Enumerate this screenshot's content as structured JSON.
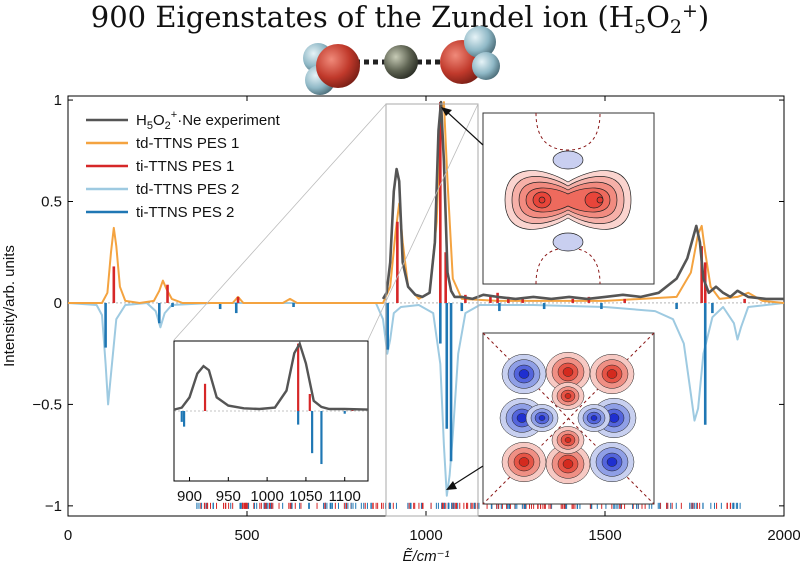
{
  "title": {
    "text": "900 Eigenstates of the Zundel ion (H",
    "sub5": "5",
    "mid": "O",
    "sub2": "2",
    "sup": "+",
    "close": ")"
  },
  "colors": {
    "experiment": "#555555",
    "td_pes1": "#f4a340",
    "ti_pes1": "#d62728",
    "td_pes2": "#9ecae1",
    "ti_pes2": "#1f77b4",
    "oxygen": "#c0392b",
    "hydrogen": "#9fc9d6",
    "neon": "#6b705c"
  },
  "legend": [
    {
      "key": "experiment",
      "label": "H5O2+·Ne experiment",
      "label_main": "H",
      "label_sub5": "5",
      "label_o": "O",
      "label_sub2": "2",
      "label_sup": "+",
      "label_rest": "·Ne experiment",
      "color_key": "experiment"
    },
    {
      "key": "td_pes1",
      "label": "td-TTNS PES 1",
      "color_key": "td_pes1"
    },
    {
      "key": "ti_pes1",
      "label": "ti-TTNS PES 1",
      "color_key": "ti_pes1"
    },
    {
      "key": "td_pes2",
      "label": "td-TTNS PES 2",
      "color_key": "td_pes2"
    },
    {
      "key": "ti_pes2",
      "label": "ti-TTNS PES 2",
      "color_key": "ti_pes2"
    }
  ],
  "chart_data": {
    "type": "line",
    "xlabel": "Ẽ/cm⁻¹",
    "ylabel": "Intensity/arb. units",
    "xlim": [
      0,
      2000
    ],
    "ylim": [
      -1.05,
      1.02
    ],
    "xticks": [
      0,
      500,
      1000,
      1500,
      2000
    ],
    "yticks": [
      -1,
      -0.5,
      0,
      0.5,
      1
    ],
    "ytick_labels": [
      "−1",
      "−0.5",
      "0",
      "0.5",
      "1"
    ],
    "series": [
      {
        "name": "H5O2+·Ne experiment",
        "kind": "line",
        "x": [
          880,
          890,
          900,
          910,
          918,
          925,
          935,
          950,
          970,
          990,
          1010,
          1025,
          1035,
          1042,
          1050,
          1060,
          1070,
          1080,
          1100,
          1130,
          1160,
          1200,
          1250,
          1300,
          1350,
          1400,
          1450,
          1500,
          1550,
          1600,
          1650,
          1700,
          1730,
          1755,
          1765,
          1775,
          1790,
          1810,
          1830,
          1850,
          1870,
          1900,
          1950,
          2000
        ],
        "y": [
          0.02,
          0.05,
          0.2,
          0.55,
          0.66,
          0.6,
          0.2,
          0.08,
          0.04,
          0.03,
          0.05,
          0.3,
          0.85,
          0.99,
          0.7,
          0.15,
          0.06,
          0.03,
          0.03,
          0.02,
          0.04,
          0.03,
          0.02,
          0.03,
          0.02,
          0.03,
          0.02,
          0.03,
          0.04,
          0.03,
          0.05,
          0.12,
          0.22,
          0.38,
          0.3,
          0.12,
          0.05,
          0.08,
          0.05,
          0.03,
          0.06,
          0.03,
          0.02,
          0.02
        ]
      },
      {
        "name": "td-TTNS PES 1",
        "kind": "line",
        "x": [
          0,
          95,
          110,
          120,
          128,
          135,
          145,
          160,
          200,
          240,
          255,
          265,
          275,
          290,
          320,
          460,
          475,
          490,
          600,
          620,
          640,
          880,
          900,
          915,
          925,
          935,
          950,
          980,
          1010,
          1030,
          1040,
          1050,
          1060,
          1075,
          1100,
          1200,
          1500,
          1700,
          1740,
          1760,
          1770,
          1780,
          1795,
          1820,
          1870,
          1900,
          1940,
          2000
        ],
        "y": [
          0,
          0,
          0.05,
          0.25,
          0.37,
          0.28,
          0.08,
          0.01,
          0,
          0.01,
          0.06,
          0.11,
          0.07,
          0.02,
          0,
          0,
          0.03,
          0,
          0,
          0.02,
          0,
          0,
          0.08,
          0.35,
          0.49,
          0.3,
          0.08,
          0.02,
          0.05,
          0.4,
          0.92,
          0.99,
          0.6,
          0.12,
          0.02,
          0.01,
          0.01,
          0.03,
          0.15,
          0.34,
          0.38,
          0.25,
          0.08,
          0.02,
          0.03,
          0.05,
          0.01,
          0
        ]
      },
      {
        "name": "ti-TTNS PES 1",
        "kind": "sticks",
        "x": [
          128,
          278,
          475,
          920,
          1040,
          1055,
          1110,
          1180,
          1200,
          1230,
          1270,
          1410,
          1455,
          1555,
          1770,
          1780,
          1890
        ],
        "y": [
          0.18,
          0.09,
          0.03,
          0.4,
          0.99,
          0.25,
          0.04,
          0.03,
          0.05,
          0.03,
          0.02,
          0.02,
          0.03,
          0.02,
          0.28,
          0.2,
          0.02
        ]
      },
      {
        "name": "td-TTNS PES 2",
        "kind": "line",
        "x": [
          0,
          80,
          95,
          105,
          112,
          120,
          135,
          160,
          220,
          245,
          258,
          270,
          290,
          400,
          860,
          880,
          892,
          900,
          910,
          930,
          980,
          1020,
          1040,
          1050,
          1058,
          1066,
          1075,
          1090,
          1110,
          1150,
          1300,
          1500,
          1640,
          1690,
          1720,
          1740,
          1750,
          1760,
          1775,
          1800,
          1830,
          1860,
          1870,
          1880,
          1900,
          1950,
          2000
        ],
        "y": [
          0,
          -0.01,
          -0.06,
          -0.3,
          -0.5,
          -0.35,
          -0.08,
          -0.01,
          0,
          -0.04,
          -0.12,
          -0.05,
          -0.01,
          0,
          0,
          -0.08,
          -0.25,
          -0.18,
          -0.05,
          -0.02,
          -0.01,
          -0.05,
          -0.3,
          -0.7,
          -0.95,
          -0.85,
          -0.65,
          -0.25,
          -0.05,
          -0.01,
          -0.01,
          -0.02,
          -0.04,
          -0.08,
          -0.2,
          -0.45,
          -0.58,
          -0.52,
          -0.25,
          -0.07,
          -0.02,
          -0.1,
          -0.18,
          -0.12,
          -0.02,
          -0.01,
          0
        ]
      },
      {
        "name": "ti-TTNS PES 2",
        "kind": "sticks",
        "x": [
          105,
          255,
          292,
          425,
          470,
          630,
          890,
          893,
          1040,
          1058,
          1070,
          1100,
          1205,
          1330,
          1490,
          1700,
          1780,
          1800
        ],
        "y": [
          -0.22,
          -0.1,
          -0.02,
          -0.03,
          -0.05,
          -0.02,
          -0.16,
          -0.23,
          -0.2,
          -0.62,
          -0.78,
          -0.04,
          -0.04,
          -0.03,
          -0.03,
          -0.03,
          -0.6,
          -0.05
        ]
      }
    ],
    "annotations": {
      "inset_xticks": [
        "900",
        "950",
        "1000",
        "1050",
        "1100"
      ],
      "inset_xlim": [
        880,
        1130
      ],
      "rug_note": "stick positions of all eigenstates along y = −1"
    }
  }
}
